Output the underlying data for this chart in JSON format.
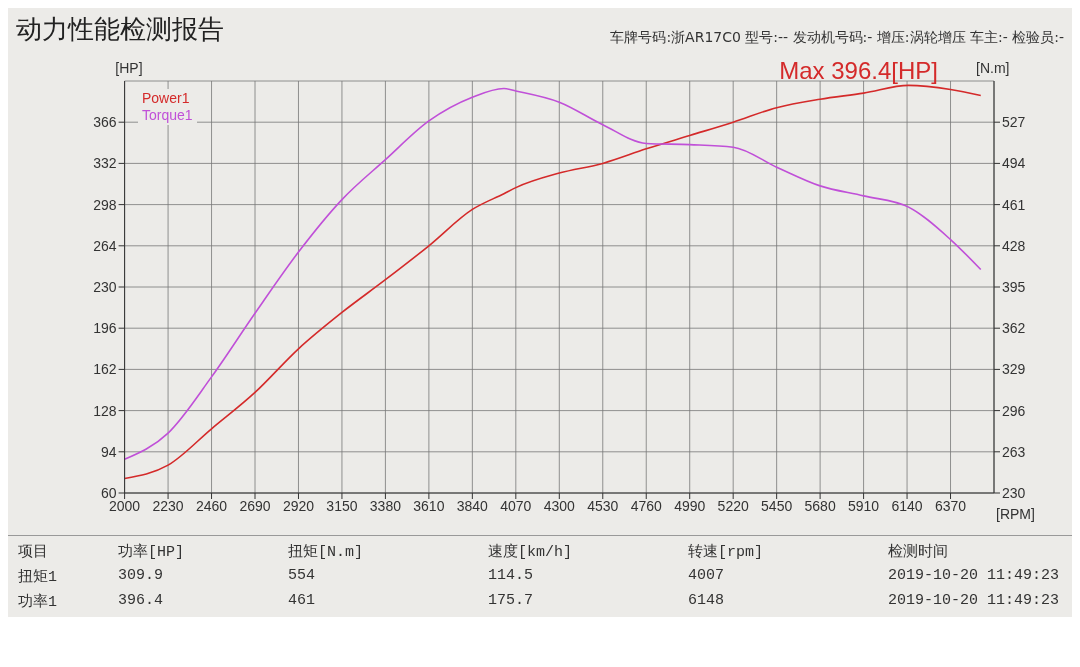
{
  "chart_data": {
    "type": "line",
    "title": "动力性能检测报告",
    "subtitle": "车牌号码:浙AR17C0 型号:-- 发动机号码:- 增压:涡轮增压 车主:- 检验员:-",
    "xlabel": "[RPM]",
    "ylabel": "[HP]",
    "y2label": "[N.m]",
    "x": [
      2000,
      2230,
      2460,
      2690,
      2920,
      3150,
      3380,
      3610,
      3840,
      4007,
      4070,
      4300,
      4530,
      4760,
      4990,
      5220,
      5450,
      5680,
      5910,
      6148,
      6370,
      6530
    ],
    "series": [
      {
        "name": "Power1",
        "color": "#d42a2a",
        "values": [
          72,
          83,
          113,
          143,
          179,
          209,
          236,
          264,
          294,
          307,
          312,
          324,
          332,
          344,
          355,
          366,
          378,
          385,
          390,
          396.4,
          393,
          388
        ]
      },
      {
        "name": "Torque1",
        "color": "#c050d8",
        "axis": "y2",
        "values": [
          257,
          278,
          323,
          374,
          423,
          465,
          497,
          528,
          547,
          554,
          552,
          543,
          525,
          510,
          509,
          507,
          491,
          476,
          468,
          459,
          433,
          409
        ]
      }
    ],
    "xlim": [
      2000,
      6600
    ],
    "xticks": [
      2000,
      2230,
      2460,
      2690,
      2920,
      3150,
      3380,
      3610,
      3840,
      4070,
      4300,
      4530,
      4760,
      4990,
      5220,
      5450,
      5680,
      5910,
      6140,
      6370
    ],
    "ylim": [
      60,
      400
    ],
    "yticks": [
      60,
      94,
      128,
      162,
      196,
      230,
      264,
      298,
      332,
      366
    ],
    "y2lim": [
      230,
      560
    ],
    "y2ticks": [
      230,
      263,
      296,
      329,
      362,
      395,
      428,
      461,
      494,
      527
    ],
    "grid": true,
    "legend": "top left",
    "marker": "none",
    "line_style": "solid",
    "annotations": [
      {
        "text": "Max 396.4[HP]",
        "x": 6148,
        "y": 396.4
      },
      "项目",
      "功率[HP]",
      "扭矩[N.m]",
      "速度[km/h]",
      "转速[rpm]",
      "检测时间",
      "扭矩1",
      "309.9",
      "554",
      "114.5",
      "4007",
      "2019-10-20 11:49:23",
      "功率1",
      "396.4",
      "461",
      "175.7",
      "6148",
      "2019-10-20 11:49:23"
    ]
  }
}
